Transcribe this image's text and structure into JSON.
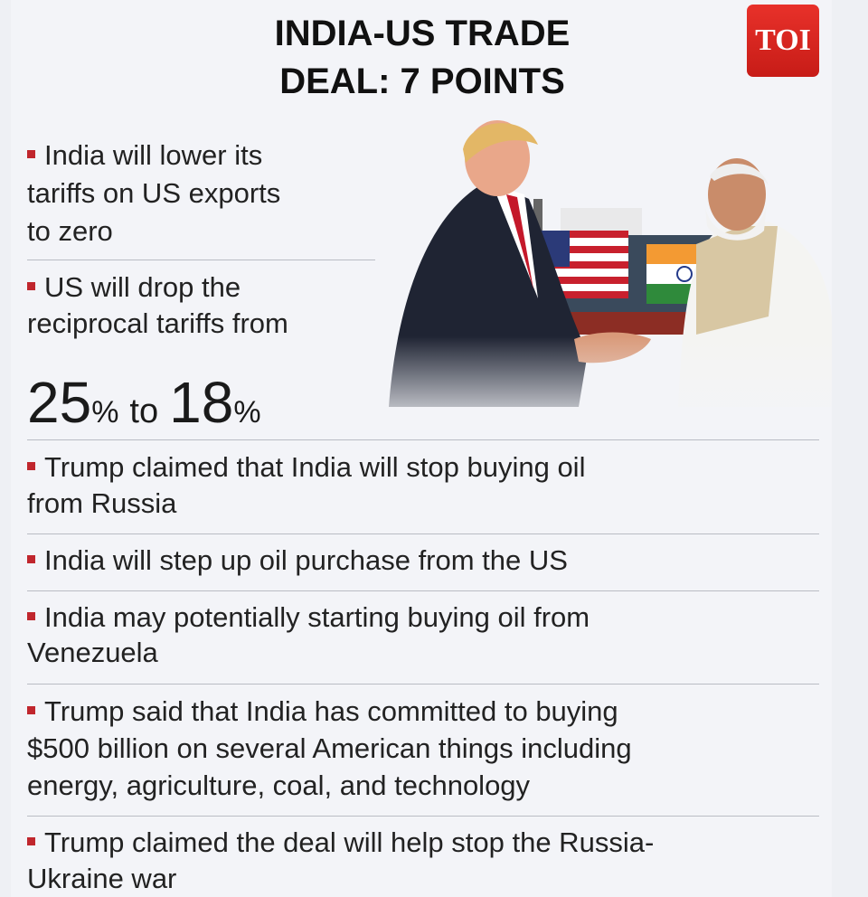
{
  "header": {
    "title_lines": [
      "INDIA-US TRADE",
      "DEAL: 7 POINTS"
    ],
    "logo": "TOI"
  },
  "points": [
    {
      "lines": [
        "India will lower its",
        "tariffs on US exports",
        "to zero"
      ]
    },
    {
      "lines": [
        "US will drop the",
        "reciprocal tariffs from"
      ],
      "highlight": {
        "from": "25",
        "from_unit": "%",
        "joiner": "to",
        "to": "18",
        "to_unit": "%"
      }
    },
    {
      "lines": [
        "Trump claimed that India will stop buying oil",
        "from Russia"
      ]
    },
    {
      "lines": [
        "India will step up oil purchase from the US"
      ]
    },
    {
      "lines": [
        "India may potentially starting buying oil from",
        "Venezuela"
      ]
    },
    {
      "lines": [
        "Trump said that India has committed to buying",
        "$500 billion on several American things including",
        "energy, agriculture, coal, and technology"
      ]
    },
    {
      "lines": [
        "Trump claimed the deal will help stop the Russia-",
        "Ukraine war"
      ]
    }
  ]
}
